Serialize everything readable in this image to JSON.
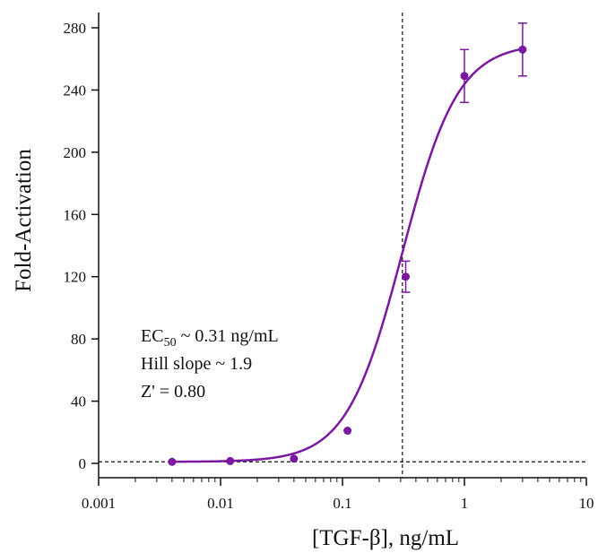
{
  "chart_data": {
    "type": "scatter",
    "xlabel": "[TGF-β], ng/mL",
    "ylabel": "Fold-Activation",
    "x_scale": "log",
    "xlim": [
      0.001,
      10
    ],
    "ylim": [
      0,
      290
    ],
    "x_ticks": [
      0.001,
      0.01,
      0.1,
      1,
      10
    ],
    "x_tick_labels": [
      "0.001",
      "0.01",
      "0.1",
      "1",
      "10"
    ],
    "y_ticks": [
      0,
      40,
      80,
      120,
      160,
      200,
      240,
      280
    ],
    "y_tick_labels": [
      "0",
      "40",
      "80",
      "120",
      "160",
      "200",
      "240",
      "280"
    ],
    "grid": false,
    "series": [
      {
        "points": [
          {
            "x": 0.004,
            "y": 1,
            "err": 0
          },
          {
            "x": 0.012,
            "y": 1.5,
            "err": 0
          },
          {
            "x": 0.04,
            "y": 3,
            "err": 0
          },
          {
            "x": 0.11,
            "y": 21,
            "err": 0
          },
          {
            "x": 0.33,
            "y": 120,
            "err": 10
          },
          {
            "x": 1.0,
            "y": 249,
            "err": 17
          },
          {
            "x": 3.0,
            "y": 266,
            "err": 17
          }
        ]
      }
    ],
    "fit": {
      "bottom": 1,
      "top": 270,
      "ec50": 0.31,
      "hill": 1.9
    },
    "reference_lines": {
      "vertical_x": 0.31,
      "horizontal_y": 1
    },
    "annotations": {
      "ec50_prefix": "EC",
      "ec50_sub": "50",
      "ec50_suffix": " ~ 0.31 ng/mL",
      "hill": "Hill slope ~ 1.9",
      "zprime": "Z' = 0.80"
    },
    "color": "#7a189f"
  }
}
